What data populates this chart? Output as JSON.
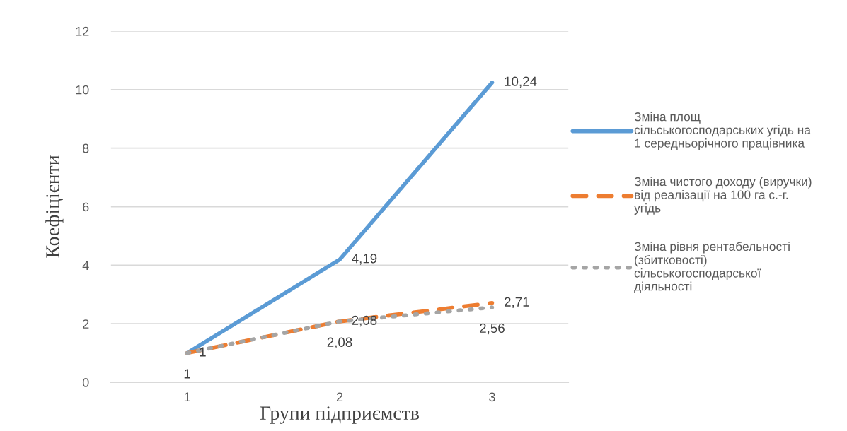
{
  "chart_data": {
    "type": "line",
    "xlabel": "Групи підприємств",
    "ylabel": "Коефіцієнти",
    "categories": [
      "1",
      "2",
      "3"
    ],
    "series": [
      {
        "name": "Зміна площ\nсільськогосподарських угідь на\n1 середньорічного працівника",
        "color": "#5b9bd5",
        "line_style": "solid",
        "values": [
          1,
          4.19,
          10.24
        ],
        "value_labels": [
          "1",
          "4,19",
          "10,24"
        ]
      },
      {
        "name": "Зміна чистого доходу (виручки)\nвід реалізації на 100 га с.-г.\nугідь",
        "color": "#ed7d31",
        "line_style": "dashed",
        "values": [
          1,
          2.08,
          2.71
        ],
        "value_labels": [
          null,
          "2,08",
          "2,71"
        ]
      },
      {
        "name": "Зміна рівня рентабельності\n(збитковості)\nсільськогосподарської\nдіяльності",
        "color": "#a5a5a5",
        "line_style": "dotted",
        "values": [
          1,
          2.08,
          2.56
        ],
        "value_labels": [
          "1",
          "2,08",
          "2,56"
        ]
      }
    ],
    "ylim": [
      0,
      12
    ],
    "yticks": [
      0,
      2,
      4,
      6,
      8,
      10,
      12
    ],
    "grid": "y",
    "legend": "right",
    "marker": "none"
  }
}
